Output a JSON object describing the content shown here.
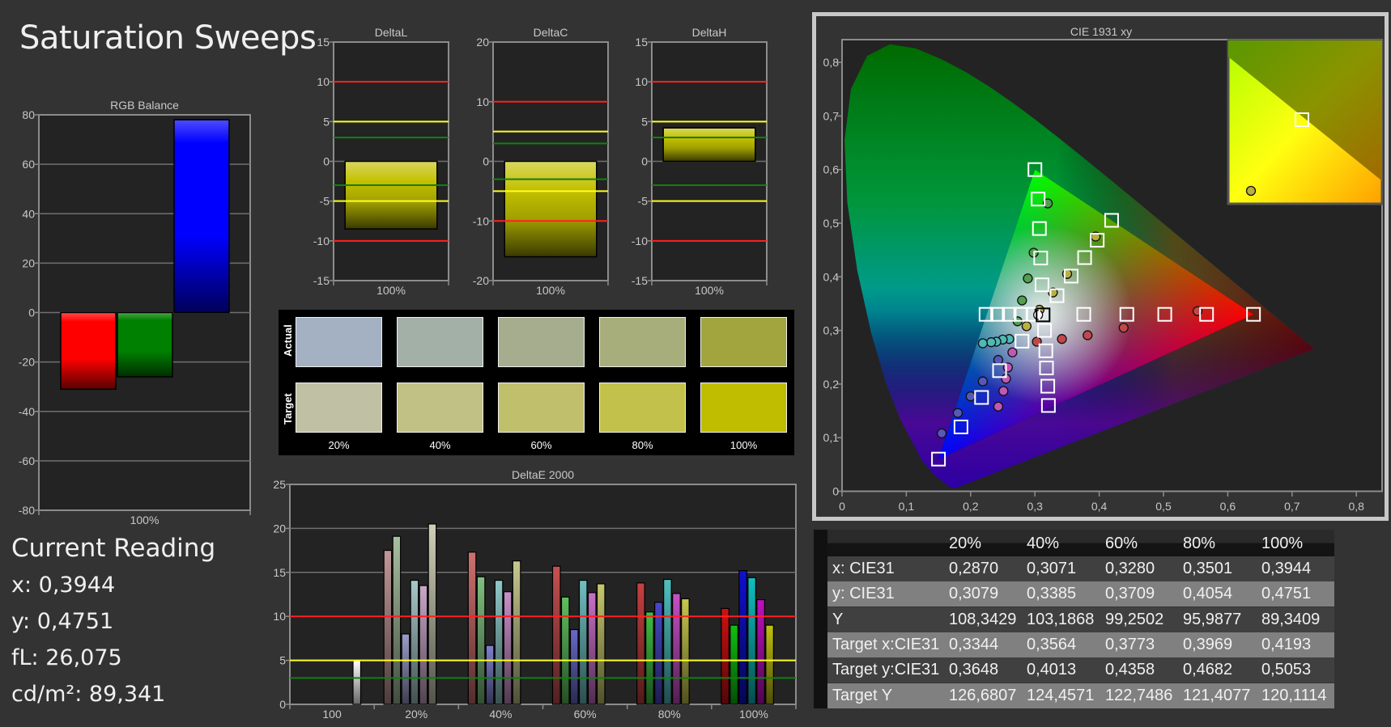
{
  "title": "Saturation Sweeps",
  "current_reading": {
    "heading": "Current Reading",
    "lines": [
      "x: 0,3944",
      "y: 0,4751",
      "fL: 26,075",
      "cd/m²: 89,341"
    ]
  },
  "swatches": {
    "actual_label": "Actual",
    "target_label": "Target",
    "labels": [
      "20%",
      "40%",
      "60%",
      "80%",
      "100%"
    ],
    "actual_colors": [
      "#a3b1c2",
      "#a3b0a8",
      "#a5ad8e",
      "#a8ae7b",
      "#a2a53e"
    ],
    "target_colors": [
      "#c0c1a4",
      "#c1c185",
      "#c0bf6b",
      "#c1c14b",
      "#c0bd00"
    ]
  },
  "table": {
    "columns": [
      "",
      "20%",
      "40%",
      "60%",
      "80%",
      "100%"
    ],
    "rows": [
      {
        "label": "x: CIE31",
        "values": [
          "0,2870",
          "0,3071",
          "0,3280",
          "0,3501",
          "0,3944"
        ]
      },
      {
        "label": "y: CIE31",
        "values": [
          "0,3079",
          "0,3385",
          "0,3709",
          "0,4054",
          "0,4751"
        ]
      },
      {
        "label": "Y",
        "values": [
          "108,3429",
          "103,1868",
          "99,2502",
          "95,9877",
          "89,3409"
        ]
      },
      {
        "label": "Target x:CIE31",
        "values": [
          "0,3344",
          "0,3564",
          "0,3773",
          "0,3969",
          "0,4193"
        ]
      },
      {
        "label": "Target y:CIE31",
        "values": [
          "0,3648",
          "0,4013",
          "0,4358",
          "0,4682",
          "0,5053"
        ]
      },
      {
        "label": "Target Y",
        "values": [
          "126,6807",
          "124,4571",
          "122,7486",
          "121,4077",
          "120,1114"
        ]
      }
    ],
    "row_colors": [
      "#404040",
      "#808080"
    ]
  },
  "chart_data": [
    {
      "id": "rgb",
      "type": "bar",
      "title": "RGB Balance",
      "categories": [
        "100%"
      ],
      "series": [
        {
          "color": "#ff0000",
          "values": [
            -31
          ]
        },
        {
          "color": "#008000",
          "values": [
            -26
          ]
        },
        {
          "color": "#0000ff",
          "values": [
            78
          ]
        }
      ],
      "ylim": [
        -80,
        80
      ],
      "yticks": [
        -80,
        -60,
        -40,
        -20,
        0,
        20,
        40,
        60,
        80
      ],
      "grid": true
    },
    {
      "id": "deltaL",
      "type": "bar",
      "title": "DeltaL",
      "categories": [
        "100%"
      ],
      "values": [
        -8.5
      ],
      "bar_color": "#c4c000",
      "ylim": [
        -15,
        15
      ],
      "yticks": [
        -15,
        -10,
        -5,
        0,
        5,
        10,
        15
      ],
      "reference_lines": [
        {
          "value": 10,
          "color": "#ff2020"
        },
        {
          "value": -10,
          "color": "#ff2020"
        },
        {
          "value": 5,
          "color": "#ffff20"
        },
        {
          "value": -5,
          "color": "#ffff20"
        },
        {
          "value": 3,
          "color": "#108010"
        },
        {
          "value": -3,
          "color": "#108010"
        }
      ]
    },
    {
      "id": "deltaC",
      "type": "bar",
      "title": "DeltaC",
      "categories": [
        "100%"
      ],
      "values": [
        -16
      ],
      "bar_color": "#c4c000",
      "ylim": [
        -20,
        20
      ],
      "yticks": [
        -20,
        -10,
        0,
        10,
        20
      ],
      "reference_lines": [
        {
          "value": 10,
          "color": "#ff2020"
        },
        {
          "value": -10,
          "color": "#ff2020"
        },
        {
          "value": 5,
          "color": "#ffff20"
        },
        {
          "value": -5,
          "color": "#ffff20"
        },
        {
          "value": 3,
          "color": "#108010"
        },
        {
          "value": -3,
          "color": "#108010"
        }
      ]
    },
    {
      "id": "deltaH",
      "type": "bar",
      "title": "DeltaH",
      "categories": [
        "100%"
      ],
      "values": [
        4.2
      ],
      "bar_color": "#c4c000",
      "ylim": [
        -15,
        15
      ],
      "yticks": [
        -15,
        -10,
        -5,
        0,
        5,
        10,
        15
      ],
      "reference_lines": [
        {
          "value": 10,
          "color": "#ff2020"
        },
        {
          "value": -10,
          "color": "#ff2020"
        },
        {
          "value": 5,
          "color": "#ffff20"
        },
        {
          "value": -5,
          "color": "#ffff20"
        },
        {
          "value": 3,
          "color": "#108010"
        },
        {
          "value": -3,
          "color": "#108010"
        }
      ]
    },
    {
      "id": "deltaE",
      "type": "bar",
      "title": "DeltaE 2000",
      "categories": [
        "100",
        "20%",
        "40%",
        "60%",
        "80%",
        "100%"
      ],
      "groups": [
        {
          "values": [
            5.0
          ],
          "colors": [
            "#ffffff"
          ]
        },
        {
          "values": [
            17.5,
            19.1,
            8.0,
            14.1,
            13.5,
            20.5
          ],
          "colors": [
            "#c09898",
            "#a8c0a0",
            "#9c9cc8",
            "#a8c8c8",
            "#c8a8c8",
            "#d0d0b8"
          ]
        },
        {
          "values": [
            17.3,
            14.5,
            6.7,
            14.1,
            12.8,
            16.3
          ],
          "colors": [
            "#d07070",
            "#80c080",
            "#8080d0",
            "#90c8c8",
            "#c890c8",
            "#c8c890"
          ]
        },
        {
          "values": [
            15.7,
            12.2,
            8.5,
            14.1,
            12.7,
            13.7
          ],
          "colors": [
            "#c85050",
            "#60c060",
            "#6868c8",
            "#70c0c0",
            "#c870c8",
            "#c8c870"
          ]
        },
        {
          "values": [
            13.8,
            10.5,
            11.6,
            14.2,
            12.6,
            12.0
          ],
          "colors": [
            "#c84040",
            "#40c040",
            "#4848c8",
            "#50c0c0",
            "#c850c8",
            "#c8c850"
          ]
        },
        {
          "values": [
            10.9,
            9.0,
            15.2,
            14.4,
            11.9,
            9.0
          ],
          "colors": [
            "#d01010",
            "#10c010",
            "#1010d0",
            "#10c0c0",
            "#c010c0",
            "#c0c010"
          ]
        }
      ],
      "ylim": [
        0,
        25
      ],
      "yticks": [
        0,
        5,
        10,
        15,
        20,
        25
      ],
      "reference_lines": [
        {
          "value": 10,
          "color": "#ff2020"
        },
        {
          "value": 5,
          "color": "#ffff20"
        },
        {
          "value": 3,
          "color": "#108010"
        }
      ]
    },
    {
      "id": "cie",
      "type": "scatter",
      "title": "CIE 1931 xy",
      "xlim": [
        0,
        0.8
      ],
      "ylim": [
        0,
        0.8
      ],
      "xticks": [
        "0",
        "0,1",
        "0,2",
        "0,3",
        "0,4",
        "0,5",
        "0,6",
        "0,7",
        "0,8"
      ],
      "yticks": [
        "0",
        "0,1",
        "0,2",
        "0,3",
        "0,4",
        "0,5",
        "0,6",
        "0,7",
        "0,8"
      ],
      "gamut": {
        "red": [
          0.64,
          0.33
        ],
        "green": [
          0.3,
          0.6
        ],
        "blue": [
          0.15,
          0.06
        ],
        "white": [
          0.3127,
          0.329
        ]
      },
      "targets": [
        [
          0.376,
          0.33
        ],
        [
          0.443,
          0.33
        ],
        [
          0.502,
          0.33
        ],
        [
          0.567,
          0.33
        ],
        [
          0.64,
          0.33
        ],
        [
          0.305,
          0.545
        ],
        [
          0.307,
          0.49
        ],
        [
          0.309,
          0.435
        ],
        [
          0.311,
          0.385
        ],
        [
          0.3,
          0.6
        ],
        [
          0.297,
          0.33
        ],
        [
          0.278,
          0.33
        ],
        [
          0.26,
          0.33
        ],
        [
          0.242,
          0.33
        ],
        [
          0.224,
          0.33
        ],
        [
          0.28,
          0.28
        ],
        [
          0.245,
          0.225
        ],
        [
          0.217,
          0.175
        ],
        [
          0.185,
          0.12
        ],
        [
          0.15,
          0.06
        ],
        [
          0.315,
          0.3
        ],
        [
          0.317,
          0.262
        ],
        [
          0.318,
          0.23
        ],
        [
          0.32,
          0.196
        ],
        [
          0.321,
          0.16
        ],
        [
          0.3344,
          0.3648
        ],
        [
          0.3564,
          0.4013
        ],
        [
          0.3773,
          0.4358
        ],
        [
          0.3969,
          0.4682
        ],
        [
          0.4193,
          0.5053
        ],
        [
          0.3127,
          0.329
        ]
      ],
      "measured": [
        {
          "color": "#c04848",
          "points": [
            [
              0.303,
              0.279
            ],
            [
              0.342,
              0.284
            ],
            [
              0.382,
              0.291
            ],
            [
              0.438,
              0.305
            ],
            [
              0.553,
              0.336
            ]
          ]
        },
        {
          "color": "#50a050",
          "points": [
            [
              0.273,
              0.317
            ],
            [
              0.28,
              0.356
            ],
            [
              0.289,
              0.397
            ],
            [
              0.298,
              0.445
            ],
            [
              0.32,
              0.537
            ]
          ]
        },
        {
          "color": "#5858b8",
          "points": [
            [
              0.243,
              0.245
            ],
            [
              0.219,
              0.205
            ],
            [
              0.2,
              0.177
            ],
            [
              0.18,
              0.146
            ],
            [
              0.155,
              0.108
            ]
          ]
        },
        {
          "color": "#50b8b8",
          "points": [
            [
              0.26,
              0.284
            ],
            [
              0.25,
              0.283
            ],
            [
              0.24,
              0.279
            ],
            [
              0.232,
              0.278
            ],
            [
              0.219,
              0.276
            ]
          ]
        },
        {
          "color": "#c058b8",
          "points": [
            [
              0.265,
              0.259
            ],
            [
              0.258,
              0.231
            ],
            [
              0.255,
              0.21
            ],
            [
              0.251,
              0.187
            ],
            [
              0.243,
              0.158
            ]
          ]
        },
        {
          "color": "#b8b040",
          "points": [
            [
              0.287,
              0.3079
            ],
            [
              0.3071,
              0.3385
            ],
            [
              0.328,
              0.3709
            ],
            [
              0.3501,
              0.4054
            ],
            [
              0.3944,
              0.4751
            ]
          ]
        },
        {
          "color": "#ffffff",
          "points": [
            [
              0.305,
              0.329
            ]
          ]
        }
      ]
    }
  ]
}
